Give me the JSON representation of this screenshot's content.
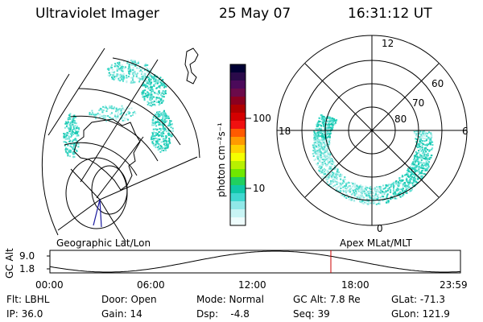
{
  "header": {
    "title": "Ultraviolet Imager",
    "date": "25 May 07",
    "time": "16:31:12 UT"
  },
  "colorbar": {
    "unit_label": "photon cm⁻²s⁻¹",
    "tick_labels": [
      "100",
      "10"
    ],
    "colors": [
      "#000033",
      "#2a0a4a",
      "#4b0a5a",
      "#6b0a4a",
      "#8b0020",
      "#b00000",
      "#d40000",
      "#f01010",
      "#ff5a00",
      "#ff9a00",
      "#ffd000",
      "#f5ff00",
      "#b8f000",
      "#70e800",
      "#20d060",
      "#10c8a8",
      "#40d8d0",
      "#90e8e8",
      "#c8f4f4",
      "#eefcfc"
    ]
  },
  "left_map": {
    "label": "Geographic Lat/Lon"
  },
  "polar_plot": {
    "label": "Apex MLat/MLT",
    "mlt_labels": [
      "12",
      "18",
      "6",
      "0"
    ],
    "lat_labels": [
      "60",
      "70",
      "80"
    ]
  },
  "orbit_plot": {
    "ylabel": "GC Alt",
    "y_ticks": [
      "9.0",
      "1.8"
    ],
    "x_ticks": [
      "00:00",
      "06:00",
      "12:00",
      "18:00",
      "23:59"
    ],
    "current_time_color": "#cc0000"
  },
  "info": {
    "row1": [
      "Flt: LBHL",
      "Door: Open",
      "Mode: Normal",
      "GC Alt: 7.8 Re",
      "GLat: -71.3"
    ],
    "row2": [
      "IP: 36.0",
      "Gain: 14",
      "Dsp:    -4.8",
      "Seq: 39",
      "GLon: 121.9"
    ]
  },
  "aurora_colors": [
    "#bff0ee",
    "#80e4dc",
    "#3ed8c8",
    "#18c8b0"
  ]
}
